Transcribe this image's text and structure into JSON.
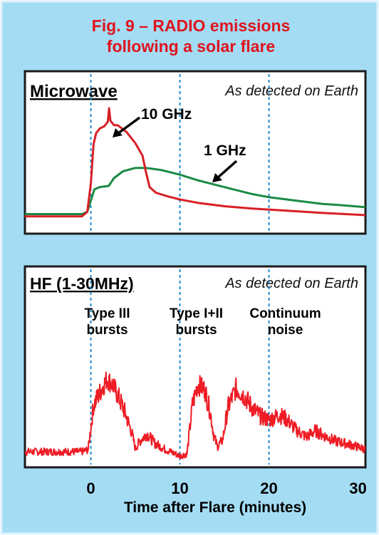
{
  "figure": {
    "title_line1": "Fig. 9 – RADIO emissions",
    "title_line2": "following a solar flare",
    "colors": {
      "background": "#a4dcf4",
      "title": "#e0141e",
      "frame": "#1b1b1b",
      "guide": "#1c8ad0",
      "red": "#d81f26",
      "green": "#1a8a43",
      "noise": "#ee1c24"
    }
  },
  "chart_data": [
    {
      "type": "line",
      "panel_title": "Microwave",
      "subtitle": "As detected on Earth",
      "x_unit": "minutes after flare",
      "xlim": [
        -10,
        31
      ],
      "ylim": [
        0,
        1
      ],
      "y_tick_labels": false,
      "vertical_markers": [
        0,
        10,
        20
      ],
      "series": [
        {
          "name": "10 GHz",
          "color": "#d81f26",
          "points": [
            [
              -10,
              0.04
            ],
            [
              -1,
              0.04
            ],
            [
              -0.4,
              0.08
            ],
            [
              0,
              0.33
            ],
            [
              0.3,
              0.68
            ],
            [
              0.6,
              0.78
            ],
            [
              1,
              0.82
            ],
            [
              1.5,
              0.84
            ],
            [
              1.9,
              0.88
            ],
            [
              2.05,
              1.0
            ],
            [
              2.2,
              0.89
            ],
            [
              2.6,
              0.85
            ],
            [
              3,
              0.85
            ],
            [
              4,
              0.79
            ],
            [
              5,
              0.69
            ],
            [
              5.8,
              0.58
            ],
            [
              6.2,
              0.43
            ],
            [
              6.6,
              0.3
            ],
            [
              7.3,
              0.25
            ],
            [
              8.5,
              0.22
            ],
            [
              10,
              0.19
            ],
            [
              12,
              0.16
            ],
            [
              15,
              0.13
            ],
            [
              18,
              0.11
            ],
            [
              22,
              0.09
            ],
            [
              26,
              0.07
            ],
            [
              31,
              0.05
            ]
          ]
        },
        {
          "name": "1 GHz",
          "color": "#1a8a43",
          "points": [
            [
              -10,
              0.06
            ],
            [
              -1,
              0.06
            ],
            [
              -0.4,
              0.08
            ],
            [
              0,
              0.18
            ],
            [
              0.4,
              0.28
            ],
            [
              1,
              0.3
            ],
            [
              2,
              0.31
            ],
            [
              2.6,
              0.38
            ],
            [
              3.6,
              0.44
            ],
            [
              5,
              0.47
            ],
            [
              6.2,
              0.47
            ],
            [
              8,
              0.45
            ],
            [
              10,
              0.41
            ],
            [
              12,
              0.36
            ],
            [
              14,
              0.32
            ],
            [
              16,
              0.28
            ],
            [
              18,
              0.24
            ],
            [
              20,
              0.21
            ],
            [
              22,
              0.19
            ],
            [
              24,
              0.17
            ],
            [
              26,
              0.15
            ],
            [
              28,
              0.14
            ],
            [
              31,
              0.12
            ]
          ]
        }
      ],
      "annotations": [
        "10 GHz",
        "1 GHz"
      ]
    },
    {
      "type": "line",
      "panel_title": "HF (1-30MHz)",
      "subtitle": "As detected on Earth",
      "x_unit": "minutes after flare",
      "xlim": [
        -10,
        31
      ],
      "ylim": [
        0,
        1
      ],
      "y_tick_labels": false,
      "vertical_markers": [
        0,
        10,
        20
      ],
      "marker_labels": [
        {
          "x": 0,
          "line1": "Type III",
          "line2": "bursts"
        },
        {
          "x": 10,
          "line1": "Type I+II",
          "line2": "bursts"
        },
        {
          "x": 20,
          "line1": "Continuum",
          "line2": "noise"
        }
      ],
      "series": [
        {
          "name": "",
          "color": "#ee1c24",
          "points": [
            [
              -10,
              0.04
            ],
            [
              -1,
              0.04
            ],
            [
              -0.3,
              0.06
            ],
            [
              0.3,
              0.48
            ],
            [
              1,
              0.6
            ],
            [
              1.8,
              0.73
            ],
            [
              2.4,
              0.68
            ],
            [
              3,
              0.58
            ],
            [
              3.8,
              0.42
            ],
            [
              4.6,
              0.22
            ],
            [
              5,
              0.07
            ],
            [
              5.5,
              0.14
            ],
            [
              6.3,
              0.21
            ],
            [
              7.2,
              0.12
            ],
            [
              8.4,
              0.06
            ],
            [
              10,
              0.0
            ],
            [
              10.8,
              0.02
            ],
            [
              11.4,
              0.48
            ],
            [
              12,
              0.68
            ],
            [
              12.8,
              0.63
            ],
            [
              13.4,
              0.42
            ],
            [
              13.8,
              0.2
            ],
            [
              14.2,
              0.09
            ],
            [
              14.8,
              0.15
            ],
            [
              15.4,
              0.46
            ],
            [
              16.3,
              0.64
            ],
            [
              17.2,
              0.57
            ],
            [
              18.1,
              0.46
            ],
            [
              19,
              0.38
            ],
            [
              20,
              0.34
            ],
            [
              21.2,
              0.39
            ],
            [
              22.1,
              0.34
            ],
            [
              23,
              0.25
            ],
            [
              24.2,
              0.18
            ],
            [
              25.2,
              0.24
            ],
            [
              26,
              0.2
            ],
            [
              27.5,
              0.14
            ],
            [
              29,
              0.11
            ],
            [
              31,
              0.06
            ]
          ]
        }
      ]
    }
  ],
  "x_axis": {
    "tick_labels": [
      "0",
      "10",
      "20",
      "30"
    ],
    "tick_values": [
      0,
      10,
      20,
      30
    ],
    "label": "Time after Flare (minutes)"
  }
}
